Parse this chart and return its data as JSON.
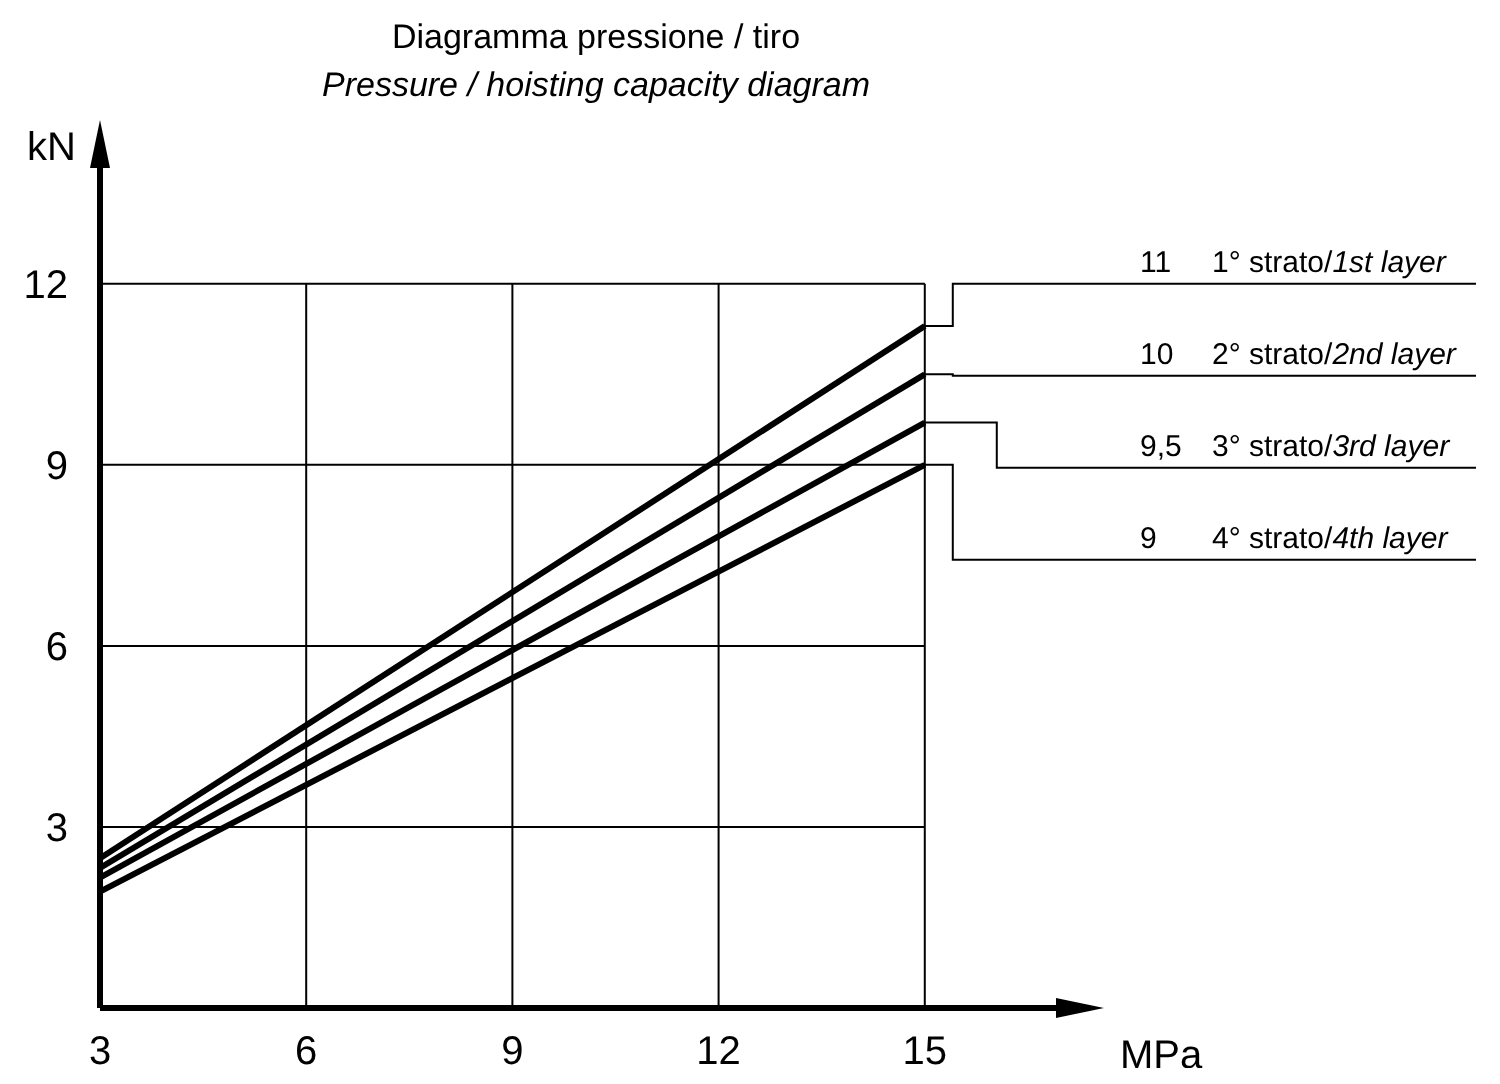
{
  "chart_data": {
    "type": "line",
    "title": "Diagramma pressione / tiro",
    "subtitle": "Pressure / hoisting capacity diagram",
    "xlabel": "MPa",
    "ylabel": "kN",
    "x": [
      3,
      15
    ],
    "series": [
      {
        "name": "1° strato/1st layer",
        "color": "#000000",
        "values": [
          2.48,
          11.3
        ]
      },
      {
        "name": "2° strato/2nd layer",
        "color": "#000000",
        "values": [
          2.32,
          10.5
        ]
      },
      {
        "name": "3° strato/3rd layer",
        "color": "#000000",
        "values": [
          2.16,
          9.7
        ]
      },
      {
        "name": "4° strato/4th layer",
        "color": "#000000",
        "values": [
          1.93,
          9.0
        ]
      }
    ],
    "annotations": [
      "11",
      "10",
      "9,5",
      "9"
    ],
    "xlim": [
      3,
      17.2
    ],
    "ylim": [
      0,
      14.25
    ],
    "xticks": [
      3,
      6,
      9,
      12,
      15
    ],
    "yticks": [
      3,
      6,
      9,
      12
    ],
    "grid": true,
    "legend": false,
    "marker": "none",
    "line_style": "solid"
  }
}
